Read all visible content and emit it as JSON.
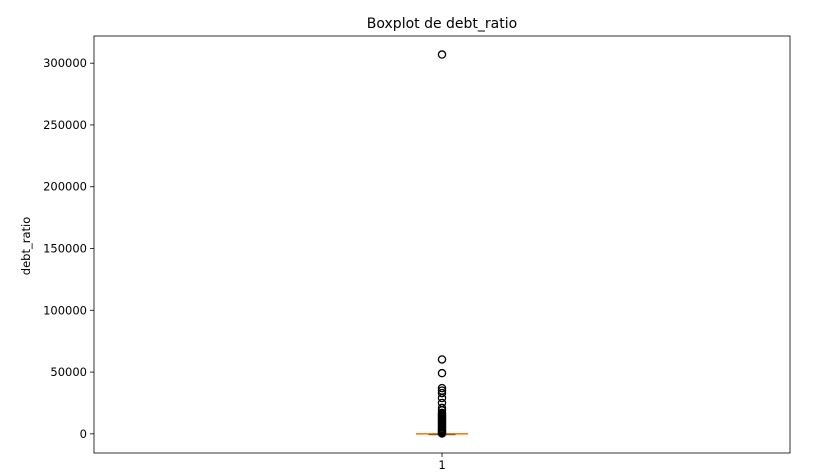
{
  "chart_data": {
    "type": "boxplot",
    "title": "Boxplot de debt_ratio",
    "xlabel": "",
    "ylabel": "debt_ratio",
    "categories": [
      "1"
    ],
    "ylim": [
      -15500,
      322000
    ],
    "yticks": [
      0,
      50000,
      100000,
      150000,
      200000,
      250000,
      300000
    ],
    "ytick_labels": [
      "0",
      "50000",
      "100000",
      "150000",
      "200000",
      "250000",
      "300000"
    ],
    "box": {
      "whisker_low": 0,
      "q1": 0.18,
      "median": 0.37,
      "q3": 0.87,
      "whisker_high": 1.9
    },
    "outliers": [
      307001,
      60212,
      49112,
      37000,
      35000,
      33000,
      29000,
      25000,
      21000,
      19000,
      17000,
      16000,
      15000,
      14000,
      13000,
      12000,
      11000,
      10000,
      9000,
      8000,
      7000,
      6000,
      5000,
      4000,
      3000,
      2200,
      1500,
      800,
      300
    ],
    "grid": false,
    "colors": {
      "median": "#ff7f0e",
      "box": "#000000",
      "flier": "#000000"
    }
  }
}
